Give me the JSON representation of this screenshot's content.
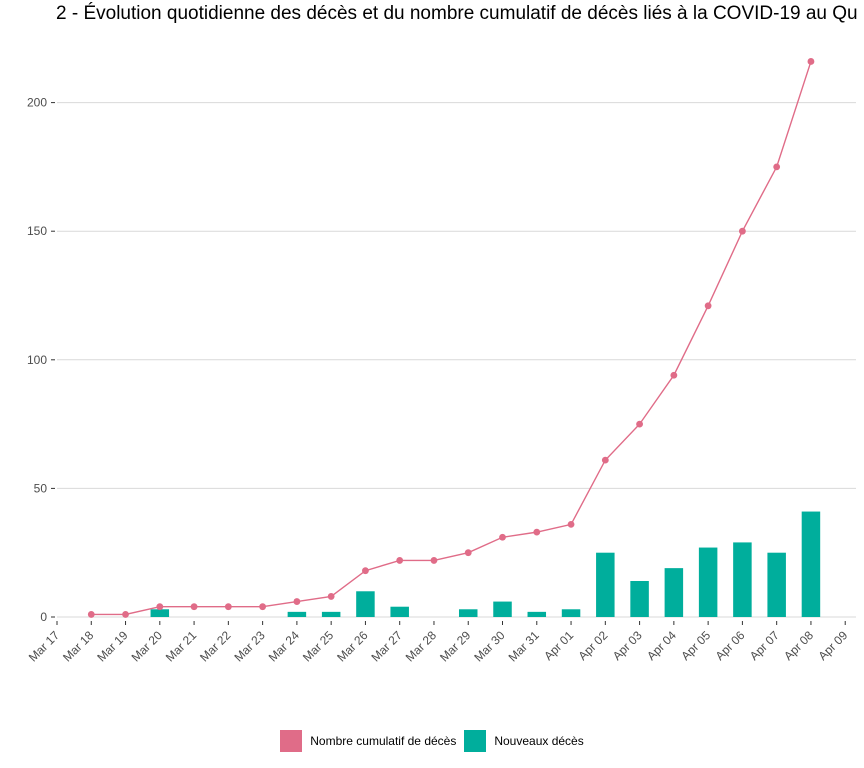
{
  "chart_data": {
    "type": "bar+line",
    "title": "2 - Évolution quotidienne des décès et du nombre cumulatif de décès liés à la COVID-19 au Qu",
    "x_ticks": [
      "Mar 17",
      "Mar 18",
      "Mar 19",
      "Mar 20",
      "Mar 21",
      "Mar 22",
      "Mar 23",
      "Mar 24",
      "Mar 25",
      "Mar 26",
      "Mar 27",
      "Mar 28",
      "Mar 29",
      "Mar 30",
      "Mar 31",
      "Apr 01",
      "Apr 02",
      "Apr 03",
      "Apr 04",
      "Apr 05",
      "Apr 06",
      "Apr 07",
      "Apr 08",
      "Apr 09"
    ],
    "y_ticks": [
      0,
      50,
      100,
      150,
      200
    ],
    "ylim": [
      0,
      220
    ],
    "grid": true,
    "legend_position": "bottom",
    "series": [
      {
        "name": "Nombre cumulatif de décès",
        "kind": "line",
        "color": "#e06c88",
        "points": [
          {
            "x": "Mar 18",
            "y": 1
          },
          {
            "x": "Mar 19",
            "y": 1
          },
          {
            "x": "Mar 20",
            "y": 4
          },
          {
            "x": "Mar 21",
            "y": 4
          },
          {
            "x": "Mar 22",
            "y": 4
          },
          {
            "x": "Mar 23",
            "y": 4
          },
          {
            "x": "Mar 24",
            "y": 6
          },
          {
            "x": "Mar 25",
            "y": 8
          },
          {
            "x": "Mar 26",
            "y": 18
          },
          {
            "x": "Mar 27",
            "y": 22
          },
          {
            "x": "Mar 28",
            "y": 22
          },
          {
            "x": "Mar 29",
            "y": 25
          },
          {
            "x": "Mar 30",
            "y": 31
          },
          {
            "x": "Mar 31",
            "y": 33
          },
          {
            "x": "Apr 01",
            "y": 36
          },
          {
            "x": "Apr 02",
            "y": 61
          },
          {
            "x": "Apr 03",
            "y": 75
          },
          {
            "x": "Apr 04",
            "y": 94
          },
          {
            "x": "Apr 05",
            "y": 121
          },
          {
            "x": "Apr 06",
            "y": 150
          },
          {
            "x": "Apr 07",
            "y": 175
          },
          {
            "x": "Apr 08",
            "y": 216
          }
        ]
      },
      {
        "name": "Nouveaux décès",
        "kind": "bar",
        "color": "#00ae9c",
        "points": [
          {
            "x": "Mar 20",
            "y": 3
          },
          {
            "x": "Mar 24",
            "y": 2
          },
          {
            "x": "Mar 25",
            "y": 2
          },
          {
            "x": "Mar 26",
            "y": 10
          },
          {
            "x": "Mar 27",
            "y": 4
          },
          {
            "x": "Mar 29",
            "y": 3
          },
          {
            "x": "Mar 30",
            "y": 6
          },
          {
            "x": "Mar 31",
            "y": 2
          },
          {
            "x": "Apr 01",
            "y": 3
          },
          {
            "x": "Apr 02",
            "y": 25
          },
          {
            "x": "Apr 03",
            "y": 14
          },
          {
            "x": "Apr 04",
            "y": 19
          },
          {
            "x": "Apr 05",
            "y": 27
          },
          {
            "x": "Apr 06",
            "y": 29
          },
          {
            "x": "Apr 07",
            "y": 25
          },
          {
            "x": "Apr 08",
            "y": 41
          }
        ]
      }
    ]
  }
}
